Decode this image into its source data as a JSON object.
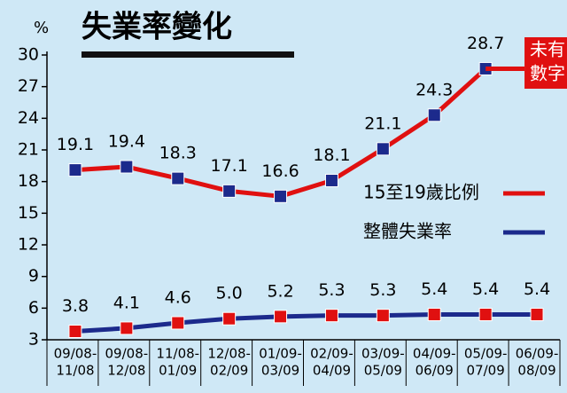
{
  "chart_data": {
    "type": "line",
    "title": "失業率變化",
    "y_label": "%",
    "categories": [
      [
        "09/08-",
        "11/08"
      ],
      [
        "09/08-",
        "12/08"
      ],
      [
        "11/08-",
        "01/09"
      ],
      [
        "12/08-",
        "02/09"
      ],
      [
        "01/09-",
        "03/09"
      ],
      [
        "02/09-",
        "04/09"
      ],
      [
        "03/09-",
        "05/09"
      ],
      [
        "04/09-",
        "06/09"
      ],
      [
        "05/09-",
        "07/09"
      ],
      [
        "06/09-",
        "08/09"
      ]
    ],
    "series": [
      {
        "name": "15至19歲比例",
        "color": "#e01010",
        "marker_color": "#1c2a8c",
        "values": [
          19.1,
          19.4,
          18.3,
          17.1,
          16.6,
          18.1,
          21.1,
          24.3,
          28.7,
          null
        ]
      },
      {
        "name": "整體失業率",
        "color": "#1c2a8c",
        "marker_color": "#e01010",
        "values": [
          3.8,
          4.1,
          4.6,
          5.0,
          5.2,
          5.3,
          5.3,
          5.4,
          5.4,
          5.4
        ],
        "value_labels": [
          "3.8",
          "4.1",
          "4.6",
          "5.0",
          "5.2",
          "5.3",
          "5.3",
          "5.4",
          "5.4",
          "5.4"
        ]
      }
    ],
    "annotation": [
      "未有",
      "數字"
    ],
    "ylim": [
      3,
      30
    ],
    "yticks": [
      3,
      6,
      9,
      12,
      15,
      18,
      21,
      24,
      27,
      30
    ],
    "grid": false
  }
}
